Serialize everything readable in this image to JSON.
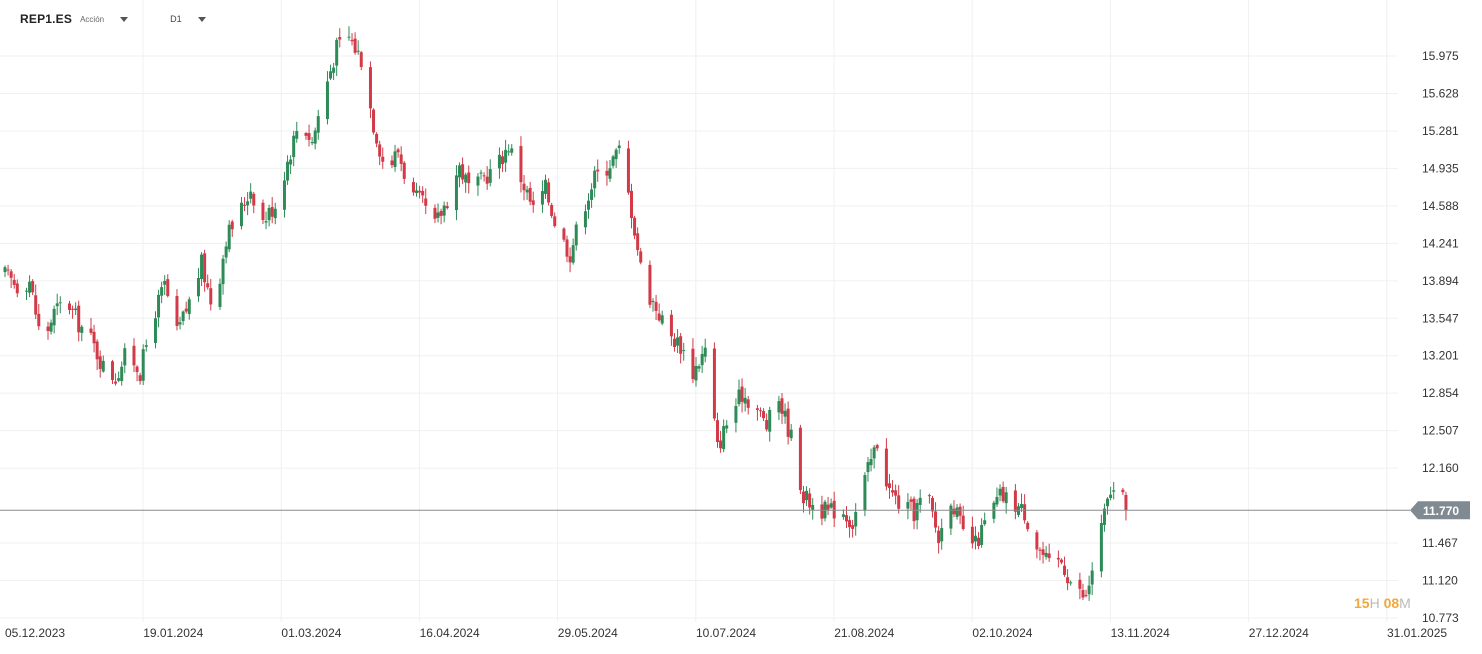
{
  "header": {
    "symbol": "REP1.ES",
    "asset_type": "Acción",
    "timeframe": "D1"
  },
  "countdown": {
    "hours": "15",
    "hours_unit": "H",
    "minutes": "08",
    "minutes_unit": "M"
  },
  "colors": {
    "up": "#2e8b57",
    "down": "#d23a47",
    "grid": "#f0f0f0",
    "last_price_line": "#8a8a8a",
    "last_price_tag": "#7f8a93",
    "axis_text": "#333333"
  },
  "chart_data": {
    "type": "candlestick",
    "title": "",
    "xlabel": "",
    "ylabel": "",
    "x_tick_labels": [
      "05.12.2023",
      "19.01.2024",
      "01.03.2024",
      "16.04.2024",
      "29.05.2024",
      "10.07.2024",
      "21.08.2024",
      "02.10.2024",
      "13.11.2024",
      "27.12.2024",
      "31.01.2025"
    ],
    "y_tick_labels": [
      "15.975",
      "15.628",
      "15.281",
      "14.935",
      "14.588",
      "14.241",
      "13.894",
      "13.547",
      "13.201",
      "12.854",
      "12.507",
      "12.160",
      "11.467",
      "11.120",
      "10.773"
    ],
    "ylim": [
      10.773,
      16.29
    ],
    "grid": true,
    "last_price": 11.77,
    "last_price_label": "11.770",
    "close_path": [
      [
        0,
        13.95
      ],
      [
        4,
        13.85
      ],
      [
        8,
        13.9
      ],
      [
        12,
        13.3
      ],
      [
        16,
        13.6
      ],
      [
        20,
        13.72
      ],
      [
        24,
        13.5
      ],
      [
        28,
        13.35
      ],
      [
        32,
        13.1
      ],
      [
        36,
        13.0
      ],
      [
        40,
        13.25
      ],
      [
        44,
        13.05
      ],
      [
        48,
        13.55
      ],
      [
        52,
        13.85
      ],
      [
        56,
        13.4
      ],
      [
        60,
        13.7
      ],
      [
        64,
        14.05
      ],
      [
        68,
        13.6
      ],
      [
        72,
        14.3
      ],
      [
        76,
        14.5
      ],
      [
        80,
        14.75
      ],
      [
        84,
        14.45
      ],
      [
        88,
        14.6
      ],
      [
        92,
        15.0
      ],
      [
        96,
        15.4
      ],
      [
        100,
        15.18
      ],
      [
        104,
        15.65
      ],
      [
        108,
        16.05
      ],
      [
        112,
        16.15
      ],
      [
        116,
        15.95
      ],
      [
        120,
        15.35
      ],
      [
        124,
        14.9
      ],
      [
        128,
        15.1
      ],
      [
        132,
        14.7
      ],
      [
        136,
        14.6
      ],
      [
        140,
        14.4
      ],
      [
        144,
        14.65
      ],
      [
        148,
        14.95
      ],
      [
        152,
        14.7
      ],
      [
        156,
        14.85
      ],
      [
        160,
        14.95
      ],
      [
        164,
        15.15
      ],
      [
        168,
        14.85
      ],
      [
        172,
        14.55
      ],
      [
        176,
        14.75
      ],
      [
        180,
        14.35
      ],
      [
        184,
        14.15
      ],
      [
        188,
        14.55
      ],
      [
        192,
        14.85
      ],
      [
        196,
        14.95
      ],
      [
        200,
        15.1
      ],
      [
        204,
        14.55
      ],
      [
        208,
        13.85
      ],
      [
        212,
        13.65
      ],
      [
        216,
        13.4
      ],
      [
        220,
        13.3
      ],
      [
        224,
        13.05
      ],
      [
        228,
        13.25
      ],
      [
        232,
        12.35
      ],
      [
        236,
        12.65
      ],
      [
        240,
        12.85
      ],
      [
        244,
        12.75
      ],
      [
        248,
        12.55
      ],
      [
        252,
        12.8
      ],
      [
        256,
        12.45
      ],
      [
        260,
        11.9
      ],
      [
        264,
        11.8
      ],
      [
        268,
        11.75
      ],
      [
        272,
        11.8
      ],
      [
        276,
        11.65
      ],
      [
        280,
        12.05
      ],
      [
        284,
        12.4
      ],
      [
        288,
        11.95
      ],
      [
        292,
        11.8
      ],
      [
        296,
        11.75
      ],
      [
        300,
        11.95
      ],
      [
        304,
        11.5
      ],
      [
        308,
        11.9
      ],
      [
        312,
        11.55
      ],
      [
        316,
        11.45
      ],
      [
        320,
        11.7
      ],
      [
        324,
        11.9
      ],
      [
        328,
        11.85
      ],
      [
        332,
        11.75
      ],
      [
        336,
        11.45
      ],
      [
        340,
        11.25
      ],
      [
        344,
        11.3
      ],
      [
        348,
        11.05
      ],
      [
        352,
        10.95
      ],
      [
        356,
        11.5
      ],
      [
        360,
        11.95
      ],
      [
        364,
        11.85
      ],
      [
        365,
        11.77
      ]
    ]
  }
}
